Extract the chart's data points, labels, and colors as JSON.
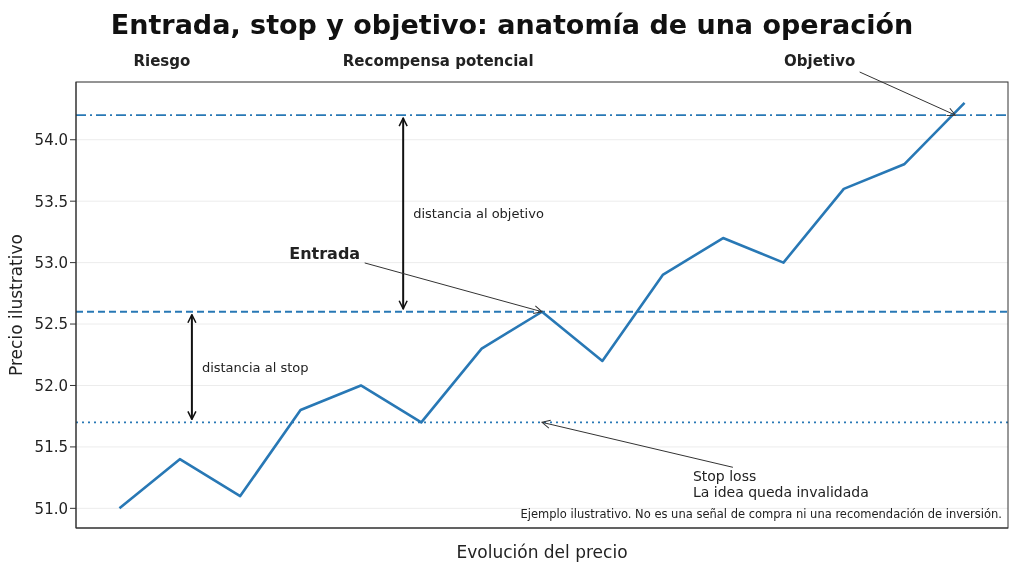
{
  "chart_data": {
    "type": "line",
    "title": "Entrada, stop y objetivo: anatomía de una operación",
    "xlabel": "Evolución del precio",
    "ylabel": "Precio ilustrativo",
    "categories": [
      null,
      null,
      null,
      null,
      null,
      null,
      null,
      null,
      null,
      null,
      null,
      null,
      null,
      null,
      null
    ],
    "series": [
      {
        "color": "#2878b5",
        "values": [
          51.0,
          51.4,
          51.1,
          51.8,
          52.0,
          51.7,
          52.3,
          52.6,
          52.2,
          52.9,
          53.2,
          53.0,
          53.6,
          53.8,
          54.3
        ]
      }
    ],
    "ylim": [
      50.84,
      54.47
    ],
    "yticks": [
      {
        "value": 51,
        "label": "51.0"
      },
      {
        "value": 51.5,
        "label": "51.5"
      },
      {
        "value": 52,
        "label": "52.0"
      },
      {
        "value": 52.5,
        "label": "52.5"
      },
      {
        "value": 53,
        "label": "53.0"
      },
      {
        "value": 53.5,
        "label": "53.5"
      },
      {
        "value": 54,
        "label": "54.0"
      }
    ],
    "grid": "y",
    "marker": "none",
    "line_style": "solid",
    "tick_labels": "y",
    "ref_lines": [
      {
        "axis": "y",
        "value": 54.2,
        "color": "#2878b5",
        "line_style": "dashdot"
      },
      {
        "axis": "y",
        "value": 52.6,
        "color": "#2878b5",
        "line_style": "dashed"
      },
      {
        "axis": "y",
        "value": 51.7,
        "color": "#2878b5",
        "line_style": "dotted"
      }
    ],
    "annotations": [
      "Riesgo",
      "Recompensa potencial",
      "Objetivo",
      "Entrada",
      "distancia al stop",
      "distancia al objetivo",
      "Stop loss\nLa idea queda invalidada",
      "Ejemplo ilustrativo. No es una señal de compra ni una recomendación de inversión."
    ]
  }
}
